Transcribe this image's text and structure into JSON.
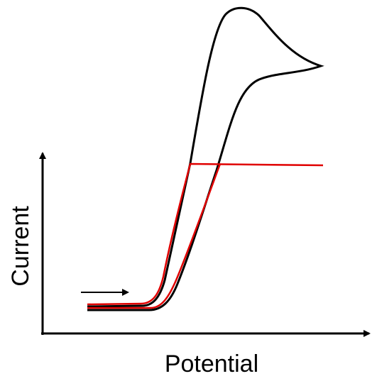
{
  "axes": {
    "x_label": "Potential",
    "y_label": "Current"
  }
}
